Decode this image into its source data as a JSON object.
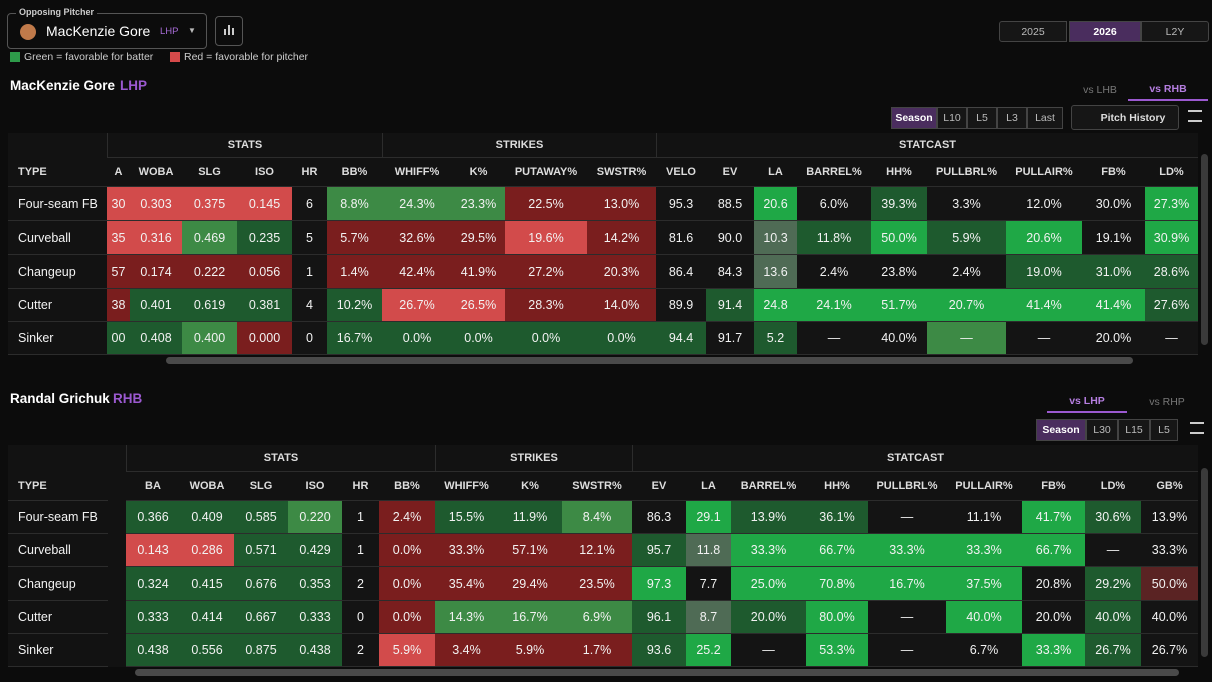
{
  "header": {
    "label": "Opposing Pitcher",
    "pitcher": "MacKenzie Gore",
    "hand": "LHP",
    "legend": [
      "Green = favorable for batter",
      "Red = favorable for pitcher"
    ],
    "seasons": [
      "2025",
      "2026",
      "L2Y"
    ]
  },
  "sections": [
    {
      "name": "MacKenzie Gore",
      "hand": "LHP",
      "splits": [
        "vs LHB",
        "vs RHB"
      ],
      "ranges": [
        "Season",
        "L10",
        "L5",
        "L3",
        "Last"
      ],
      "button": "Pitch History",
      "groups": [
        "STATS",
        "STRIKES",
        "STATCAST"
      ],
      "columns": [
        "TYPE",
        "A",
        "WOBA",
        "SLG",
        "ISO",
        "HR",
        "BB%",
        "WHIFF%",
        "K%",
        "PUTAWAY%",
        "SWSTR%",
        "VELO",
        "EV",
        "LA",
        "BARREL%",
        "HH%",
        "PULLBRL%",
        "PULLAIR%",
        "FB%",
        "LD%"
      ],
      "rows": [
        [
          "Four-seam FB",
          "30",
          "0.303",
          "0.375",
          "0.145",
          "6",
          "8.8%",
          "24.3%",
          "23.3%",
          "22.5%",
          "13.0%",
          "95.3",
          "88.5",
          "20.6",
          "6.0%",
          "39.3%",
          "3.3%",
          "12.0%",
          "30.0%",
          "27.3%"
        ],
        [
          "Curveball",
          "35",
          "0.316",
          "0.469",
          "0.235",
          "5",
          "5.7%",
          "32.6%",
          "29.5%",
          "19.6%",
          "14.2%",
          "81.6",
          "90.0",
          "10.3",
          "11.8%",
          "50.0%",
          "5.9%",
          "20.6%",
          "19.1%",
          "30.9%"
        ],
        [
          "Changeup",
          "57",
          "0.174",
          "0.222",
          "0.056",
          "1",
          "1.4%",
          "42.4%",
          "41.9%",
          "27.2%",
          "20.3%",
          "86.4",
          "84.3",
          "13.6",
          "2.4%",
          "23.8%",
          "2.4%",
          "19.0%",
          "31.0%",
          "28.6%"
        ],
        [
          "Cutter",
          "38",
          "0.401",
          "0.619",
          "0.381",
          "4",
          "10.2%",
          "26.7%",
          "26.5%",
          "28.3%",
          "14.0%",
          "89.9",
          "91.4",
          "24.8",
          "24.1%",
          "51.7%",
          "20.7%",
          "41.4%",
          "41.4%",
          "27.6%"
        ],
        [
          "Sinker",
          "00",
          "0.408",
          "0.400",
          "0.000",
          "0",
          "16.7%",
          "0.0%",
          "0.0%",
          "0.0%",
          "0.0%",
          "94.4",
          "91.7",
          "5.2",
          "—",
          "40.0%",
          "—",
          "—",
          "20.0%",
          "—"
        ]
      ]
    },
    {
      "name": "Randal Grichuk",
      "hand": "RHB",
      "splits": [
        "vs LHP",
        "vs RHP"
      ],
      "ranges": [
        "Season",
        "L30",
        "L15",
        "L5"
      ],
      "groups": [
        "STATS",
        "STRIKES",
        "STATCAST"
      ],
      "columns": [
        "TYPE",
        "BA",
        "WOBA",
        "SLG",
        "ISO",
        "HR",
        "BB%",
        "WHIFF%",
        "K%",
        "SWSTR%",
        "EV",
        "LA",
        "BARREL%",
        "HH%",
        "PULLBRL%",
        "PULLAIR%",
        "FB%",
        "LD%",
        "GB%"
      ],
      "rows": [
        [
          "Four-seam FB",
          "0.366",
          "0.409",
          "0.585",
          "0.220",
          "1",
          "2.4%",
          "15.5%",
          "11.9%",
          "8.4%",
          "86.3",
          "29.1",
          "13.9%",
          "36.1%",
          "—",
          "11.1%",
          "41.7%",
          "30.6%",
          "13.9%"
        ],
        [
          "Curveball",
          "0.143",
          "0.286",
          "0.571",
          "0.429",
          "1",
          "0.0%",
          "33.3%",
          "57.1%",
          "12.1%",
          "95.7",
          "11.8",
          "33.3%",
          "66.7%",
          "33.3%",
          "33.3%",
          "66.7%",
          "—",
          "33.3%"
        ],
        [
          "Changeup",
          "0.324",
          "0.415",
          "0.676",
          "0.353",
          "2",
          "0.0%",
          "35.4%",
          "29.4%",
          "23.5%",
          "97.3",
          "7.7",
          "25.0%",
          "70.8%",
          "16.7%",
          "37.5%",
          "20.8%",
          "29.2%",
          "50.0%"
        ],
        [
          "Cutter",
          "0.333",
          "0.414",
          "0.667",
          "0.333",
          "0",
          "0.0%",
          "14.3%",
          "16.7%",
          "6.9%",
          "96.1",
          "8.7",
          "20.0%",
          "80.0%",
          "—",
          "40.0%",
          "20.0%",
          "40.0%",
          "40.0%"
        ],
        [
          "Sinker",
          "0.438",
          "0.556",
          "0.875",
          "0.438",
          "2",
          "5.9%",
          "3.4%",
          "5.9%",
          "1.7%",
          "93.6",
          "25.2",
          "—",
          "53.3%",
          "—",
          "6.7%",
          "33.3%",
          "26.7%",
          "26.7%"
        ]
      ]
    }
  ]
}
